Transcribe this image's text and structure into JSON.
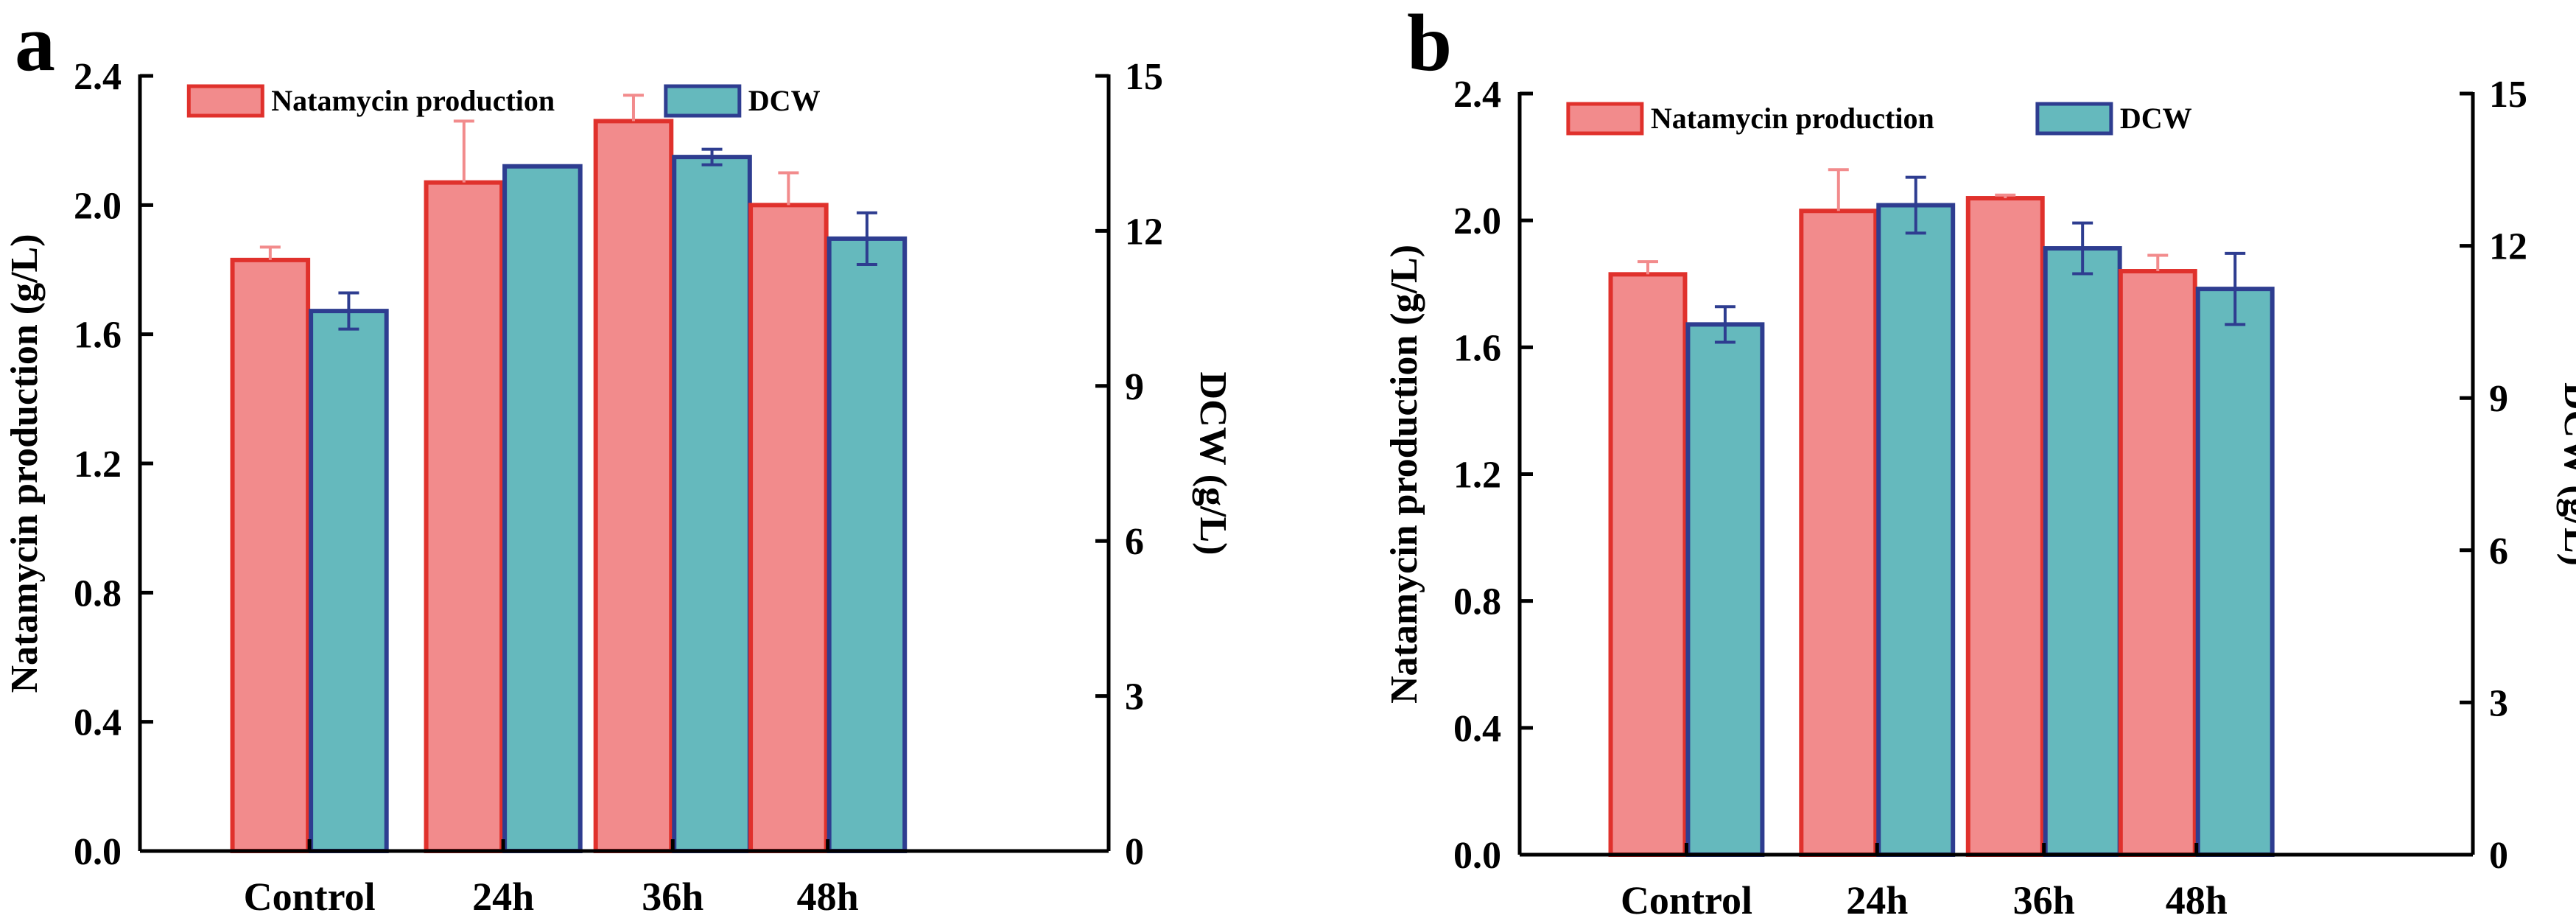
{
  "colors": {
    "natamycin_fill": "#f28b8c",
    "natamycin_edge": "#e0312c",
    "dcw_fill": "#65b9bd",
    "dcw_edge": "#2e3d90",
    "axis": "#000000"
  },
  "chart_data": [
    {
      "panel": "a",
      "type": "bar",
      "categories": [
        "Control",
        "24h",
        "36h",
        "48h"
      ],
      "series": [
        {
          "name": "Natamycin production",
          "axis": "left",
          "values": [
            1.83,
            2.07,
            2.26,
            2.0
          ],
          "errors": [
            0.04,
            0.19,
            0.08,
            0.1
          ]
        },
        {
          "name": "DCW",
          "axis": "right",
          "values": [
            10.45,
            13.25,
            13.43,
            11.85
          ],
          "errors": [
            0.35,
            0.0,
            0.15,
            0.5
          ]
        }
      ],
      "ylabel": "Natamycin production (g/L)",
      "ylabel_right": "DCW (g/L)",
      "ylim": [
        0,
        2.4
      ],
      "ylim_right": [
        0,
        15
      ],
      "yticks": [
        "0.0",
        "0.4",
        "0.8",
        "1.2",
        "1.6",
        "2.0",
        "2.4"
      ],
      "yticks_right": [
        "0",
        "3",
        "6",
        "9",
        "12",
        "15"
      ],
      "legend": "top"
    },
    {
      "panel": "b",
      "type": "bar",
      "categories": [
        "Control",
        "24h",
        "36h",
        "48h"
      ],
      "series": [
        {
          "name": "Natamycin production",
          "axis": "left",
          "values": [
            1.83,
            2.03,
            2.07,
            1.84
          ],
          "errors": [
            0.04,
            0.13,
            0.01,
            0.05
          ]
        },
        {
          "name": "DCW",
          "axis": "right",
          "values": [
            10.45,
            12.8,
            11.95,
            11.15
          ],
          "errors": [
            0.35,
            0.55,
            0.5,
            0.7
          ]
        }
      ],
      "ylabel": "Natamycin production (g/L)",
      "ylabel_right": "DCW (g/L)",
      "ylim": [
        0,
        2.4
      ],
      "ylim_right": [
        0,
        15
      ],
      "yticks": [
        "0.0",
        "0.4",
        "0.8",
        "1.2",
        "1.6",
        "2.0",
        "2.4"
      ],
      "yticks_right": [
        "0",
        "3",
        "6",
        "9",
        "12",
        "15"
      ],
      "legend": "top"
    }
  ]
}
